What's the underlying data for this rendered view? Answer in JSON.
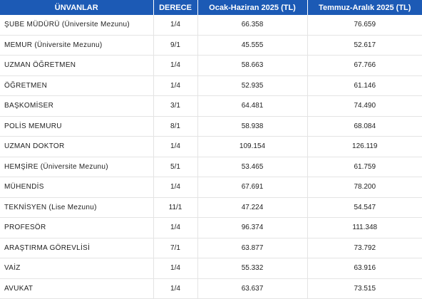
{
  "table": {
    "headers": [
      "ÜNVANLAR",
      "DERECE",
      "Ocak-Haziran 2025 (TL)",
      "Temmuz-Aralık 2025 (TL)"
    ],
    "rows": [
      {
        "title": "ŞUBE MÜDÜRÜ (Üniversite Mezunu)",
        "grade": "1/4",
        "h1": "66.358",
        "h2": "76.659"
      },
      {
        "title": "MEMUR (Üniversite Mezunu)",
        "grade": "9/1",
        "h1": "45.555",
        "h2": "52.617"
      },
      {
        "title": "UZMAN ÖĞRETMEN",
        "grade": "1/4",
        "h1": "58.663",
        "h2": "67.766"
      },
      {
        "title": "ÖĞRETMEN",
        "grade": "1/4",
        "h1": "52.935",
        "h2": "61.146"
      },
      {
        "title": "BAŞKOMİSER",
        "grade": "3/1",
        "h1": "64.481",
        "h2": "74.490"
      },
      {
        "title": "POLİS MEMURU",
        "grade": "8/1",
        "h1": "58.938",
        "h2": "68.084"
      },
      {
        "title": "UZMAN DOKTOR",
        "grade": "1/4",
        "h1": "109.154",
        "h2": "126.119"
      },
      {
        "title": "HEMŞİRE (Üniversite Mezunu)",
        "grade": "5/1",
        "h1": "53.465",
        "h2": "61.759"
      },
      {
        "title": "MÜHENDİS",
        "grade": "1/4",
        "h1": "67.691",
        "h2": "78.200"
      },
      {
        "title": "TEKNİSYEN (Lise Mezunu)",
        "grade": "11/1",
        "h1": "47.224",
        "h2": "54.547"
      },
      {
        "title": "PROFESÖR",
        "grade": "1/4",
        "h1": "96.374",
        "h2": "111.348"
      },
      {
        "title": "ARAŞTIRMA GÖREVLİSİ",
        "grade": "7/1",
        "h1": "63.877",
        "h2": "73.792"
      },
      {
        "title": "VAİZ",
        "grade": "1/4",
        "h1": "55.332",
        "h2": "63.916"
      },
      {
        "title": "AVUKAT",
        "grade": "1/4",
        "h1": "63.637",
        "h2": "73.515"
      }
    ]
  },
  "colors": {
    "header_background": "#1c5ab5",
    "header_text": "#ffffff",
    "row_divider": "#e4e4e4"
  }
}
